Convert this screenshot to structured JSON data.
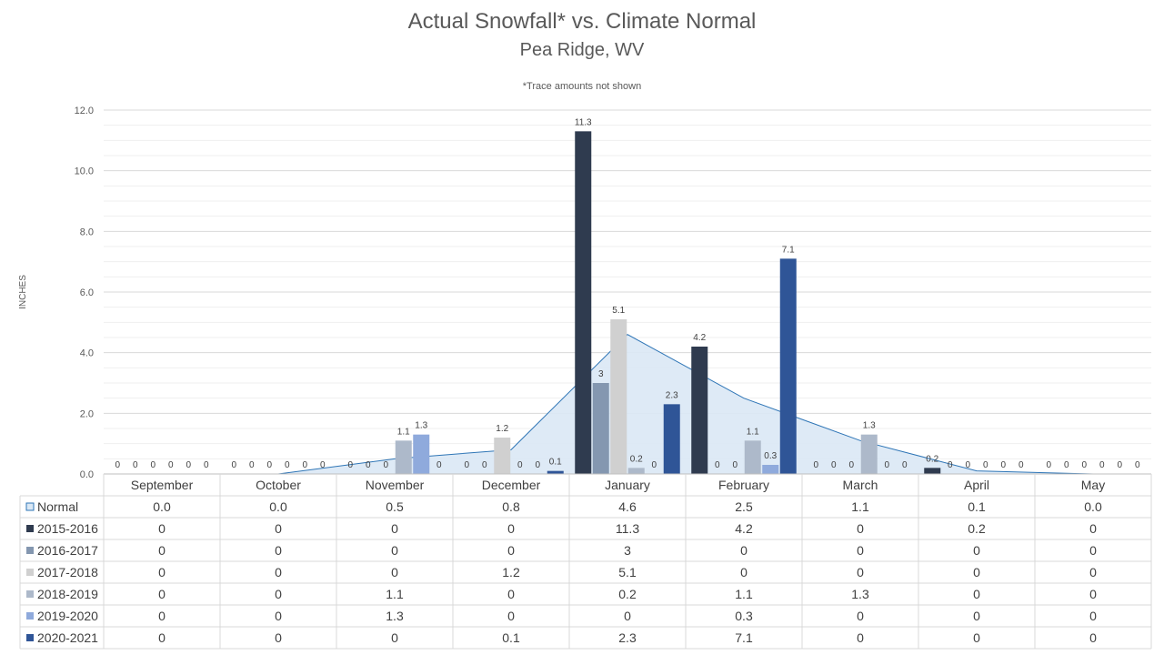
{
  "chart_data": {
    "type": "bar",
    "title": "Actual Snowfall* vs. Climate Normal",
    "subtitle": "Pea Ridge, WV",
    "note": "*Trace amounts not shown",
    "ylabel": "INCHES",
    "ylim": [
      0,
      12
    ],
    "yticks": [
      "0.0",
      "2.0",
      "4.0",
      "6.0",
      "8.0",
      "10.0",
      "12.0"
    ],
    "grid": true,
    "legend": "data-table-below",
    "categories": [
      "September",
      "October",
      "November",
      "December",
      "January",
      "February",
      "March",
      "April",
      "May"
    ],
    "normal": {
      "name": "Normal",
      "type": "area",
      "values": [
        0.0,
        0.0,
        0.5,
        0.8,
        4.6,
        2.5,
        1.1,
        0.1,
        0.0
      ],
      "labels": [
        "0.0",
        "0.0",
        "0.5",
        "0.8",
        "4.6",
        "2.5",
        "1.1",
        "0.1",
        "0.0"
      ],
      "color": "#dae8f5",
      "line_color": "#2e75b6"
    },
    "series": [
      {
        "name": "2015-2016",
        "color": "#2f3b4f",
        "values": [
          0,
          0,
          0,
          0,
          11.3,
          4.2,
          0,
          0.2,
          0
        ]
      },
      {
        "name": "2016-2017",
        "color": "#8497b0",
        "values": [
          0,
          0,
          0,
          0,
          3,
          0,
          0,
          0,
          0
        ]
      },
      {
        "name": "2017-2018",
        "color": "#d0d0d0",
        "values": [
          0,
          0,
          0,
          1.2,
          5.1,
          0,
          0,
          0,
          0
        ]
      },
      {
        "name": "2018-2019",
        "color": "#adb9ca",
        "values": [
          0,
          0,
          1.1,
          0,
          0.2,
          1.1,
          1.3,
          0,
          0
        ]
      },
      {
        "name": "2019-2020",
        "color": "#8faadc",
        "values": [
          0,
          0,
          1.3,
          0,
          0,
          0.3,
          0,
          0,
          0
        ]
      },
      {
        "name": "2020-2021",
        "color": "#2f5597",
        "values": [
          0,
          0,
          0,
          0.1,
          2.3,
          7.1,
          0,
          0,
          0
        ]
      }
    ]
  }
}
